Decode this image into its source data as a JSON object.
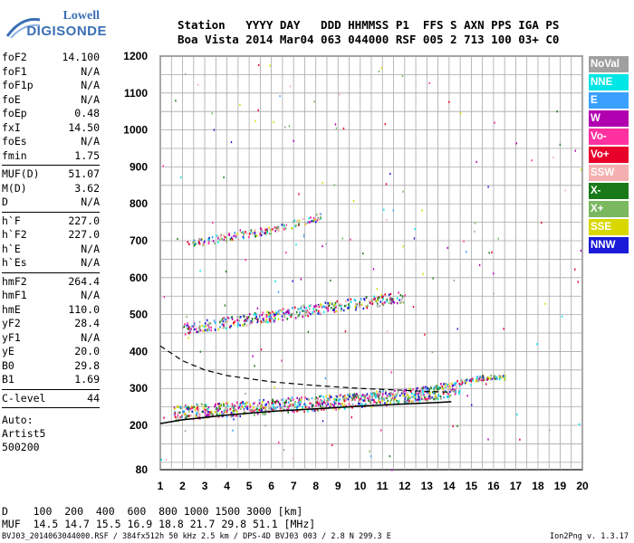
{
  "logo": {
    "line1": "Lowell",
    "line2": "DIGISONDE"
  },
  "header": {
    "line1": "Station   YYYY DAY   DDD HHMMSS P1  FFS S AXN PPS IGA PS",
    "line2": "Boa Vista 2014 Mar04 063 044000 RSF 005 2 713 100 03+ C0"
  },
  "params": {
    "group1": [
      {
        "k": "foF2",
        "v": "14.100"
      },
      {
        "k": "foF1",
        "v": "N/A"
      },
      {
        "k": "foF1p",
        "v": "N/A"
      },
      {
        "k": "foE",
        "v": "N/A"
      },
      {
        "k": "foEp",
        "v": "0.48"
      },
      {
        "k": "fxI",
        "v": "14.50"
      },
      {
        "k": "foEs",
        "v": "N/A"
      },
      {
        "k": "fmin",
        "v": "1.75"
      }
    ],
    "group2": [
      {
        "k": "MUF(D)",
        "v": "51.07"
      },
      {
        "k": "M(D)",
        "v": "3.62"
      },
      {
        "k": "D",
        "v": "N/A"
      }
    ],
    "group3": [
      {
        "k": "h`F",
        "v": "227.0"
      },
      {
        "k": "h`F2",
        "v": "227.0"
      },
      {
        "k": "h`E",
        "v": "N/A"
      },
      {
        "k": "h`Es",
        "v": "N/A"
      }
    ],
    "group4": [
      {
        "k": "hmF2",
        "v": "264.4"
      },
      {
        "k": "hmF1",
        "v": "N/A"
      },
      {
        "k": "hmE",
        "v": "110.0"
      },
      {
        "k": "yF2",
        "v": "28.4"
      },
      {
        "k": "yF1",
        "v": "N/A"
      },
      {
        "k": "yE",
        "v": "20.0"
      },
      {
        "k": "B0",
        "v": "29.8"
      },
      {
        "k": "B1",
        "v": "1.69"
      }
    ],
    "group5": [
      {
        "k": "C-level",
        "v": "44"
      }
    ],
    "auto": {
      "line1": "Auto:",
      "line2": "Artist5",
      "line3": "500200"
    }
  },
  "legend": [
    {
      "label": "NoVal",
      "color": "#a0a0a0"
    },
    {
      "label": "NNE",
      "color": "#00e5e5"
    },
    {
      "label": "E",
      "color": "#3aa0ff"
    },
    {
      "label": "W",
      "color": "#b000b0"
    },
    {
      "label": "Vo-",
      "color": "#ff30a0"
    },
    {
      "label": "Vo+",
      "color": "#e8002a"
    },
    {
      "label": "SSW",
      "color": "#f4b0b0"
    },
    {
      "label": "X-",
      "color": "#1a7a1a"
    },
    {
      "label": "X+",
      "color": "#7ab860"
    },
    {
      "label": "SSE",
      "color": "#d8d800"
    },
    {
      "label": "NNW",
      "color": "#1a1ad8"
    }
  ],
  "bottom": {
    "dline": "D    100  200  400  600  800 1000 1500 3000 [km]",
    "mufline": "MUF  14.5 14.7 15.5 16.9 18.8 21.7 29.8 51.1 [MHz]"
  },
  "footer": {
    "left": "BVJ03_2014063044000.RSF / 384fx512h 50 kHz 2.5 km / DPS-4D BVJ03 003 / 2.8 N 299.3 E",
    "right": "Ion2Png v. 1.3.17"
  },
  "chart_data": {
    "type": "scatter",
    "x_ticks": [
      1,
      2,
      3,
      4,
      5,
      6,
      7,
      8,
      9,
      10,
      11,
      12,
      13,
      14,
      15,
      16,
      17,
      18,
      19,
      20
    ],
    "y_ticks": [
      80,
      200,
      300,
      400,
      500,
      600,
      700,
      800,
      900,
      1000,
      1100,
      1200
    ],
    "xlim": [
      1,
      20
    ],
    "ylim": [
      80,
      1200
    ],
    "grid": true,
    "traces": [
      {
        "name": "F2 trace",
        "x": [
          1.6,
          3,
          5,
          7,
          9,
          11,
          13,
          14,
          14.5
        ],
        "y": [
          230,
          238,
          245,
          255,
          262,
          272,
          285,
          295,
          305
        ]
      },
      {
        "name": "2nd hop",
        "x": [
          2,
          4,
          6,
          8,
          10,
          12
        ],
        "y": [
          460,
          478,
          495,
          515,
          530,
          548
        ]
      },
      {
        "name": "3rd hop",
        "x": [
          2.2,
          4,
          6,
          8.2
        ],
        "y": [
          690,
          710,
          730,
          765
        ]
      },
      {
        "name": "high-freq spread",
        "x": [
          14.5,
          15,
          15.5,
          16,
          16.5
        ],
        "y": [
          318,
          325,
          330,
          332,
          330
        ]
      }
    ],
    "profile": {
      "x": [
        1,
        2,
        4,
        6,
        8,
        10,
        12,
        13.5,
        14.1
      ],
      "y": [
        205,
        215,
        228,
        238,
        245,
        252,
        258,
        262,
        264
      ]
    },
    "model_curve": {
      "x": [
        1,
        2,
        3,
        4,
        6,
        8,
        10,
        12,
        13,
        14.1
      ],
      "y": [
        415,
        375,
        350,
        335,
        318,
        308,
        300,
        295,
        292,
        290
      ]
    }
  }
}
